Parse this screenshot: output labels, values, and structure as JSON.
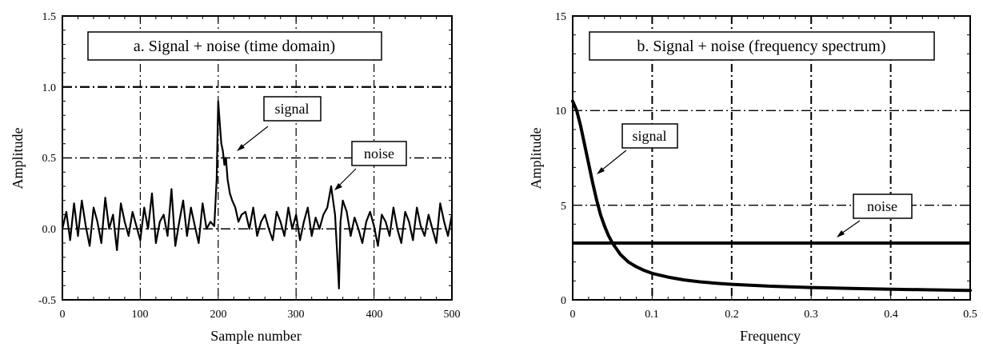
{
  "chart_data": [
    {
      "type": "line",
      "title": "a.  Signal + noise (time domain)",
      "xlabel": "Sample number",
      "ylabel": "Amplitude",
      "xlim": [
        0,
        500
      ],
      "ylim": [
        -0.5,
        1.5
      ],
      "x_ticks": [
        "0",
        "100",
        "200",
        "300",
        "400",
        "500"
      ],
      "y_ticks": [
        "-0.5",
        "0.0",
        "0.5",
        "1.0",
        "1.5"
      ],
      "grid": true,
      "series": [
        {
          "x": [
            0,
            5,
            10,
            15,
            20,
            25,
            30,
            35,
            40,
            45,
            50,
            55,
            60,
            65,
            70,
            75,
            80,
            85,
            90,
            95,
            100,
            105,
            110,
            115,
            120,
            125,
            130,
            135,
            140,
            145,
            150,
            155,
            160,
            165,
            170,
            175,
            180,
            185,
            190,
            195,
            198,
            200,
            202,
            204,
            206,
            208,
            210,
            212,
            215,
            218,
            222,
            226,
            230,
            235,
            240,
            245,
            250,
            255,
            260,
            265,
            270,
            275,
            280,
            285,
            290,
            295,
            300,
            305,
            310,
            315,
            320,
            325,
            330,
            335,
            340,
            345,
            350,
            353,
            355,
            357,
            360,
            365,
            370,
            375,
            380,
            385,
            390,
            395,
            400,
            405,
            410,
            415,
            420,
            425,
            430,
            435,
            440,
            445,
            450,
            455,
            460,
            465,
            470,
            475,
            480,
            485,
            490,
            495,
            500
          ],
          "y": [
            0.0,
            0.12,
            -0.08,
            0.18,
            -0.05,
            0.2,
            0.02,
            -0.12,
            0.15,
            0.05,
            -0.1,
            0.22,
            0.0,
            0.1,
            -0.15,
            0.18,
            0.05,
            -0.05,
            0.12,
            0.02,
            -0.08,
            0.15,
            0.0,
            0.25,
            -0.1,
            0.05,
            0.1,
            -0.05,
            0.28,
            -0.12,
            0.05,
            0.2,
            -0.05,
            0.15,
            0.02,
            -0.1,
            0.18,
            0.0,
            0.05,
            0.02,
            0.35,
            0.9,
            0.75,
            0.6,
            0.55,
            0.45,
            0.5,
            0.35,
            0.25,
            0.2,
            0.15,
            0.05,
            0.1,
            0.12,
            0.0,
            0.15,
            -0.05,
            0.05,
            0.1,
            0.0,
            -0.08,
            0.12,
            0.05,
            -0.05,
            0.15,
            0.0,
            0.1,
            -0.08,
            0.05,
            0.15,
            -0.05,
            0.08,
            0.0,
            0.1,
            0.15,
            0.3,
            0.1,
            -0.2,
            -0.42,
            0.05,
            0.2,
            0.12,
            -0.05,
            0.08,
            0.0,
            -0.1,
            0.05,
            0.12,
            0.02,
            -0.12,
            0.1,
            0.05,
            -0.05,
            0.15,
            0.0,
            -0.1,
            0.12,
            0.05,
            -0.08,
            0.15,
            0.02,
            -0.05,
            0.1,
            0.0,
            -0.1,
            0.18,
            0.05,
            -0.05,
            0.1
          ]
        }
      ],
      "annotations": [
        "signal",
        "noise"
      ]
    },
    {
      "type": "line",
      "title": "b.  Signal + noise (frequency spectrum)",
      "xlabel": "Frequency",
      "ylabel": "Amplitude",
      "xlim": [
        0,
        0.5
      ],
      "ylim": [
        0,
        15
      ],
      "x_ticks": [
        "0",
        "0.1",
        "0.2",
        "0.3",
        "0.4",
        "0.5"
      ],
      "y_ticks": [
        "0",
        "5",
        "10",
        "15"
      ],
      "grid": true,
      "series": [
        {
          "x": [
            0,
            0.005,
            0.01,
            0.015,
            0.02,
            0.025,
            0.03,
            0.035,
            0.04,
            0.045,
            0.05,
            0.06,
            0.07,
            0.08,
            0.09,
            0.1,
            0.12,
            0.14,
            0.16,
            0.18,
            0.2,
            0.25,
            0.3,
            0.35,
            0.4,
            0.45,
            0.5
          ],
          "y": [
            10.5,
            10.0,
            9.2,
            8.2,
            7.2,
            6.2,
            5.3,
            4.5,
            3.9,
            3.4,
            3.0,
            2.4,
            2.0,
            1.75,
            1.55,
            1.4,
            1.2,
            1.05,
            0.95,
            0.88,
            0.82,
            0.72,
            0.65,
            0.6,
            0.56,
            0.53,
            0.5
          ]
        },
        {
          "x": [
            0,
            0.5
          ],
          "y": [
            3.0,
            3.0
          ]
        }
      ],
      "annotations": [
        "signal",
        "noise"
      ]
    }
  ]
}
